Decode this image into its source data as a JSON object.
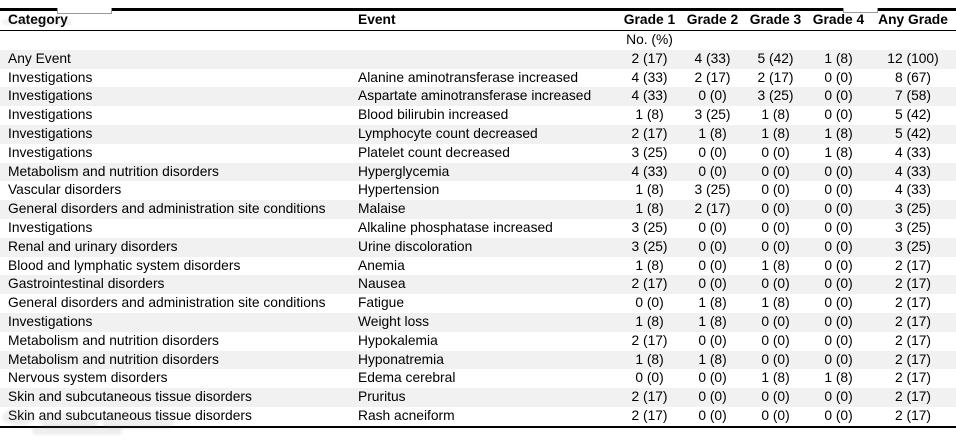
{
  "page": {
    "background": "#ffffff"
  },
  "colors": {
    "row_shade": "#f1f1f1",
    "rule": "#000000",
    "text": "#000000",
    "partial_box_border": "#9a9a9a"
  },
  "table": {
    "columns": [
      "Category",
      "Event",
      "Grade 1",
      "Grade 2",
      "Grade 3",
      "Grade 4",
      "Any Grade"
    ],
    "unit_label": "No. (%)",
    "rows": [
      {
        "category": "Any Event",
        "event": "",
        "g1": "2 (17)",
        "g2": "4 (33)",
        "g3": "5 (42)",
        "g4": "1 (8)",
        "any": "12 (100)"
      },
      {
        "category": "Investigations",
        "event": "Alanine aminotransferase increased",
        "g1": "4 (33)",
        "g2": "2 (17)",
        "g3": "2 (17)",
        "g4": "0 (0)",
        "any": "8 (67)"
      },
      {
        "category": "Investigations",
        "event": "Aspartate aminotransferase increased",
        "g1": "4 (33)",
        "g2": "0 (0)",
        "g3": "3 (25)",
        "g4": "0 (0)",
        "any": "7 (58)"
      },
      {
        "category": "Investigations",
        "event": "Blood bilirubin increased",
        "g1": "1 (8)",
        "g2": "3 (25)",
        "g3": "1 (8)",
        "g4": "0 (0)",
        "any": "5 (42)"
      },
      {
        "category": "Investigations",
        "event": "Lymphocyte count decreased",
        "g1": "2 (17)",
        "g2": "1 (8)",
        "g3": "1 (8)",
        "g4": "1 (8)",
        "any": "5 (42)"
      },
      {
        "category": "Investigations",
        "event": "Platelet count decreased",
        "g1": "3 (25)",
        "g2": "0 (0)",
        "g3": "0 (0)",
        "g4": "1 (8)",
        "any": "4 (33)"
      },
      {
        "category": "Metabolism and nutrition disorders",
        "event": "Hyperglycemia",
        "g1": "4 (33)",
        "g2": "0 (0)",
        "g3": "0 (0)",
        "g4": "0 (0)",
        "any": "4 (33)"
      },
      {
        "category": "Vascular disorders",
        "event": "Hypertension",
        "g1": "1 (8)",
        "g2": "3 (25)",
        "g3": "0 (0)",
        "g4": "0 (0)",
        "any": "4 (33)"
      },
      {
        "category": "General disorders and administration site conditions",
        "event": "Malaise",
        "g1": "1 (8)",
        "g2": "2 (17)",
        "g3": "0 (0)",
        "g4": "0 (0)",
        "any": "3 (25)"
      },
      {
        "category": "Investigations",
        "event": "Alkaline phosphatase increased",
        "g1": "3 (25)",
        "g2": "0 (0)",
        "g3": "0 (0)",
        "g4": "0 (0)",
        "any": "3 (25)"
      },
      {
        "category": "Renal and urinary disorders",
        "event": "Urine discoloration",
        "g1": "3 (25)",
        "g2": "0 (0)",
        "g3": "0 (0)",
        "g4": "0 (0)",
        "any": "3 (25)"
      },
      {
        "category": "Blood and lymphatic system disorders",
        "event": "Anemia",
        "g1": "1 (8)",
        "g2": "0 (0)",
        "g3": "1 (8)",
        "g4": "0 (0)",
        "any": "2 (17)"
      },
      {
        "category": "Gastrointestinal disorders",
        "event": "Nausea",
        "g1": "2 (17)",
        "g2": "0 (0)",
        "g3": "0 (0)",
        "g4": "0 (0)",
        "any": "2 (17)"
      },
      {
        "category": "General disorders and administration site conditions",
        "event": "Fatigue",
        "g1": "0 (0)",
        "g2": "1 (8)",
        "g3": "1 (8)",
        "g4": "0 (0)",
        "any": "2 (17)"
      },
      {
        "category": "Investigations",
        "event": "Weight loss",
        "g1": "1 (8)",
        "g2": "1 (8)",
        "g3": "0 (0)",
        "g4": "0 (0)",
        "any": "2 (17)"
      },
      {
        "category": "Metabolism and nutrition disorders",
        "event": "Hypokalemia",
        "g1": "2 (17)",
        "g2": "0 (0)",
        "g3": "0 (0)",
        "g4": "0 (0)",
        "any": "2 (17)"
      },
      {
        "category": "Metabolism and nutrition disorders",
        "event": "Hyponatremia",
        "g1": "1 (8)",
        "g2": "1 (8)",
        "g3": "0 (0)",
        "g4": "0 (0)",
        "any": "2 (17)"
      },
      {
        "category": "Nervous system disorders",
        "event": "Edema cerebral",
        "g1": "0 (0)",
        "g2": "0 (0)",
        "g3": "1 (8)",
        "g4": "1 (8)",
        "any": "2 (17)"
      },
      {
        "category": "Skin and subcutaneous tissue disorders",
        "event": "Pruritus",
        "g1": "2 (17)",
        "g2": "0 (0)",
        "g3": "0 (0)",
        "g4": "0 (0)",
        "any": "2 (17)"
      },
      {
        "category": "Skin and subcutaneous tissue disorders",
        "event": "Rash acneiform",
        "g1": "2 (17)",
        "g2": "0 (0)",
        "g3": "0 (0)",
        "g4": "0 (0)",
        "any": "2 (17)"
      }
    ]
  }
}
